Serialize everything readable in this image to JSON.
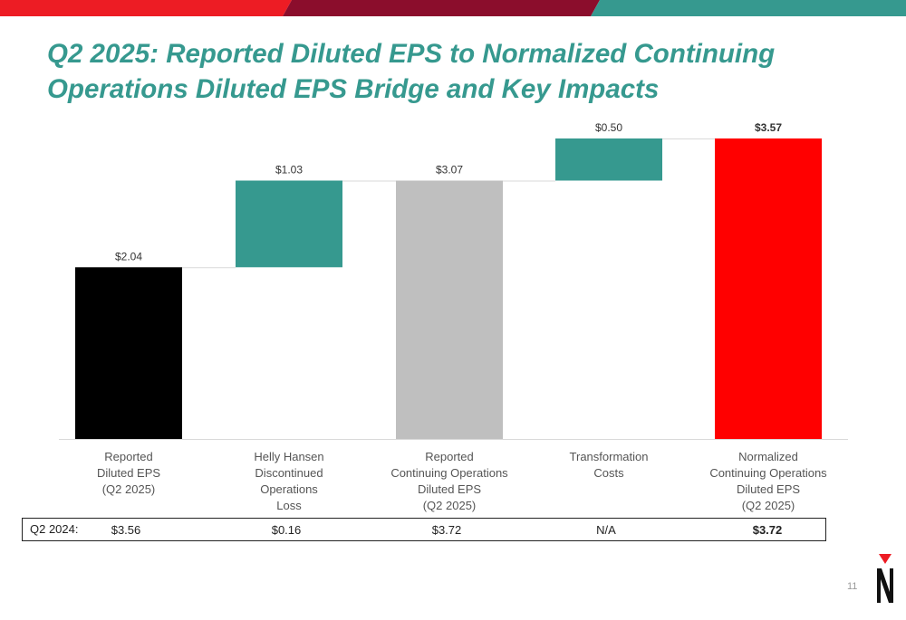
{
  "title_lines": [
    "Q2 2025: Reported Diluted EPS to Normalized Continuing",
    "Operations Diluted EPS Bridge and Key Impacts"
  ],
  "colors": {
    "title": "#36998f",
    "teal": "#36998f",
    "red": "#ff0000",
    "black": "#000000",
    "gray": "#bfbfbf",
    "top_red": "#ed1c24",
    "top_maroon": "#8b0d2c"
  },
  "chart_data": {
    "type": "bar",
    "subtype": "waterfall",
    "categories": [
      [
        "Reported",
        "Diluted EPS",
        "(Q2 2025)"
      ],
      [
        "Helly Hansen",
        "Discontinued",
        "Operations",
        "Loss"
      ],
      [
        "Reported",
        "Continuing Operations",
        "Diluted EPS",
        "(Q2 2025)"
      ],
      [
        "Transformation",
        "Costs"
      ],
      [
        "Normalized",
        "Continuing Operations",
        "Diluted EPS",
        "(Q2 2025)"
      ]
    ],
    "bars": [
      {
        "kind": "total",
        "start": 0,
        "end": 2.04,
        "label": "$2.04",
        "color": "#000000",
        "bold_label": false
      },
      {
        "kind": "increase",
        "start": 2.04,
        "end": 3.07,
        "label": "$1.03",
        "color": "#36998f",
        "bold_label": false
      },
      {
        "kind": "total",
        "start": 0,
        "end": 3.07,
        "label": "$3.07",
        "color": "#bfbfbf",
        "bold_label": false
      },
      {
        "kind": "increase",
        "start": 3.07,
        "end": 3.57,
        "label": "$0.50",
        "color": "#36998f",
        "bold_label": false
      },
      {
        "kind": "total",
        "start": 0,
        "end": 3.57,
        "label": "$3.57",
        "color": "#ff0000",
        "bold_label": true
      }
    ],
    "ylim": [
      0,
      3.57
    ],
    "grid": false,
    "legend": "none"
  },
  "prior_year": {
    "label": "Q2 2024:",
    "values": [
      "$3.56",
      "$0.16",
      "$3.72",
      "N/A",
      "$3.72"
    ],
    "bold": [
      false,
      false,
      false,
      false,
      true
    ]
  },
  "page_number": "11",
  "logo_icon": "triangle-n-logo-icon"
}
